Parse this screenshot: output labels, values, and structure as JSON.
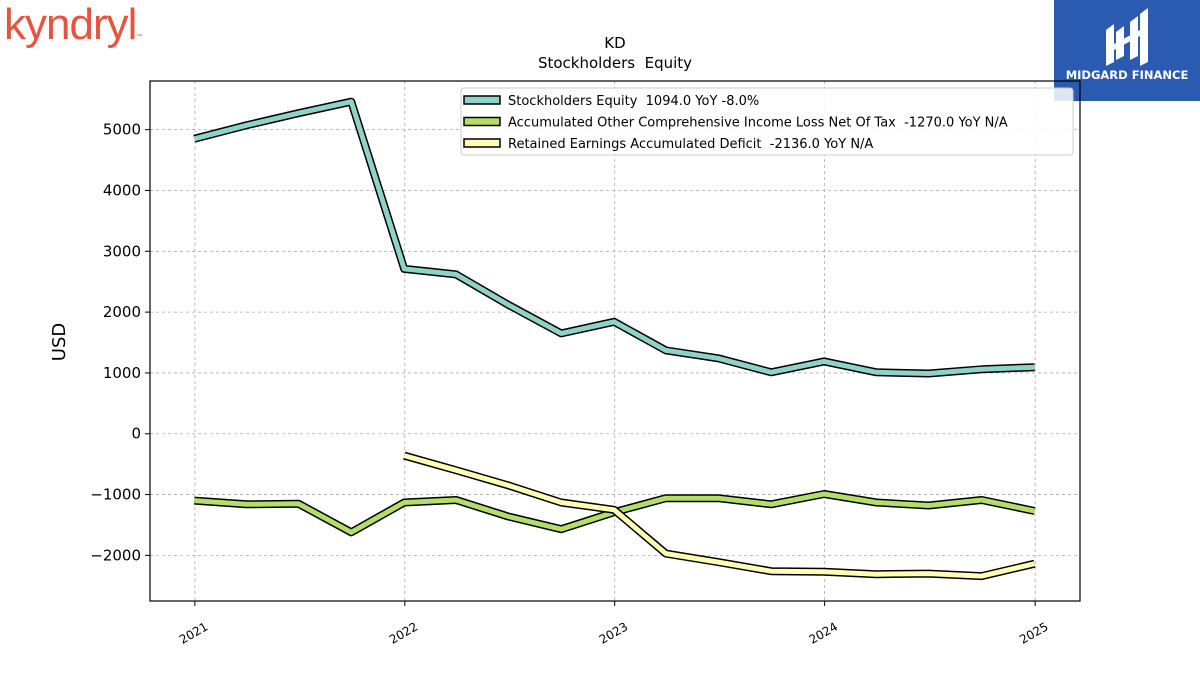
{
  "branding": {
    "left_logo_text": "kyndryl",
    "left_logo_mark": "™",
    "right_logo_text": "MIDGARD FINANCE"
  },
  "chart_data": {
    "type": "line",
    "title": "KD",
    "subtitle": "Stockholders  Equity",
    "ylabel": "USD",
    "xlabel": "",
    "xlim": [
      "2020-10-15",
      "2025-03-20"
    ],
    "ylim": [
      -2750,
      5800
    ],
    "yticks": [
      -2000,
      -1000,
      0,
      1000,
      2000,
      3000,
      4000,
      5000
    ],
    "ytick_labels": [
      "−2000",
      "−1000",
      "0",
      "1000",
      "2000",
      "3000",
      "4000",
      "5000"
    ],
    "xticks": [
      "2021-01-01",
      "2022-01-01",
      "2023-01-01",
      "2024-01-01",
      "2025-01-01"
    ],
    "xtick_labels": [
      "2021",
      "2022",
      "2023",
      "2024",
      "2025"
    ],
    "grid": true,
    "legend_position": "top-right",
    "series": [
      {
        "name": "Stockholders Equity  1094.0 YoY -8.0%",
        "color": "#8dd3c7",
        "points": [
          [
            "2020-12-31",
            4850
          ],
          [
            "2021-03-31",
            5070
          ],
          [
            "2021-06-30",
            5270
          ],
          [
            "2021-09-30",
            5460
          ],
          [
            "2021-12-31",
            2710
          ],
          [
            "2022-03-31",
            2620
          ],
          [
            "2022-06-30",
            2120
          ],
          [
            "2022-09-30",
            1650
          ],
          [
            "2022-12-31",
            1840
          ],
          [
            "2023-03-31",
            1370
          ],
          [
            "2023-06-30",
            1240
          ],
          [
            "2023-09-30",
            1010
          ],
          [
            "2023-12-31",
            1190
          ],
          [
            "2024-03-31",
            1010
          ],
          [
            "2024-06-30",
            990
          ],
          [
            "2024-09-30",
            1060
          ],
          [
            "2024-12-31",
            1094
          ]
        ]
      },
      {
        "name": "Accumulated Other Comprehensive Income Loss Net Of Tax  -1270.0 YoY N/A",
        "color": "#b3de69",
        "points": [
          [
            "2020-12-31",
            -1100
          ],
          [
            "2021-03-31",
            -1160
          ],
          [
            "2021-06-30",
            -1150
          ],
          [
            "2021-09-30",
            -1620
          ],
          [
            "2021-12-31",
            -1130
          ],
          [
            "2022-03-31",
            -1090
          ],
          [
            "2022-06-30",
            -1360
          ],
          [
            "2022-09-30",
            -1570
          ],
          [
            "2022-12-31",
            -1290
          ],
          [
            "2023-03-31",
            -1060
          ],
          [
            "2023-06-30",
            -1060
          ],
          [
            "2023-09-30",
            -1160
          ],
          [
            "2023-12-31",
            -990
          ],
          [
            "2024-03-31",
            -1130
          ],
          [
            "2024-06-30",
            -1180
          ],
          [
            "2024-09-30",
            -1090
          ],
          [
            "2024-12-31",
            -1270
          ]
        ]
      },
      {
        "name": "Retained Earnings Accumulated Deficit  -2136.0 YoY N/A",
        "color": "#ffffb3",
        "points": [
          [
            "2021-12-31",
            -360
          ],
          [
            "2022-03-31",
            -600
          ],
          [
            "2022-06-30",
            -850
          ],
          [
            "2022-09-30",
            -1130
          ],
          [
            "2022-12-31",
            -1250
          ],
          [
            "2023-03-31",
            -1970
          ],
          [
            "2023-06-30",
            -2110
          ],
          [
            "2023-09-30",
            -2260
          ],
          [
            "2023-12-31",
            -2270
          ],
          [
            "2024-03-31",
            -2310
          ],
          [
            "2024-06-30",
            -2300
          ],
          [
            "2024-09-30",
            -2340
          ],
          [
            "2024-12-31",
            -2136
          ]
        ]
      }
    ]
  }
}
